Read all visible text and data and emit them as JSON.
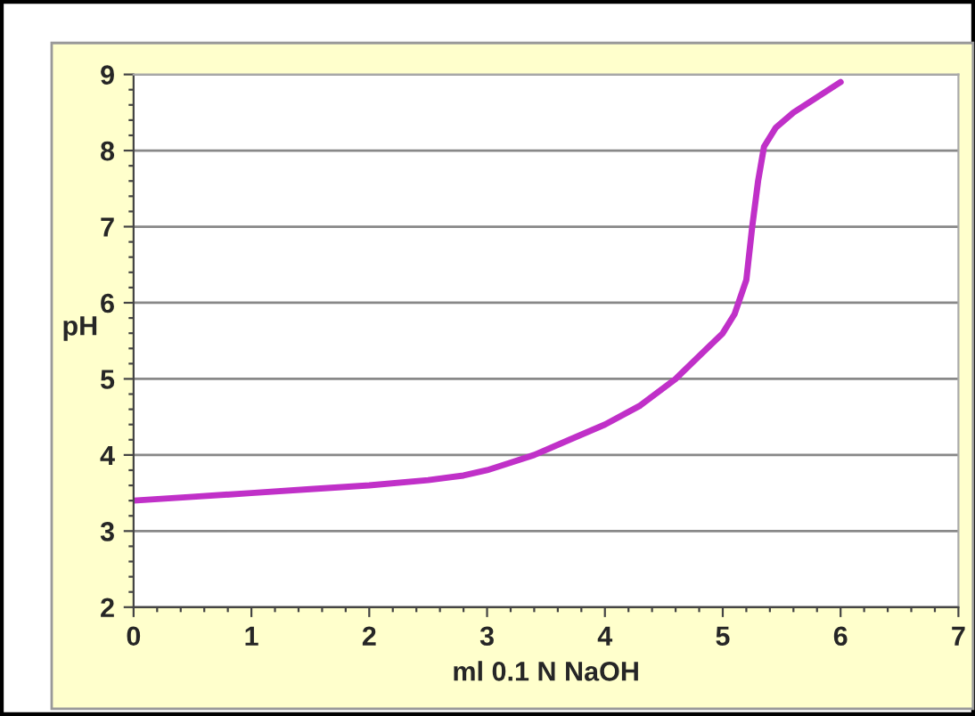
{
  "chart_data": {
    "type": "line",
    "xlabel": "ml 0.1 N NaOH",
    "ylabel": "pH",
    "x": [
      0,
      0.5,
      1,
      1.5,
      2,
      2.5,
      2.8,
      3,
      3.2,
      3.4,
      3.7,
      4,
      4.3,
      4.6,
      4.8,
      5.0,
      5.1,
      5.2,
      5.25,
      5.3,
      5.35,
      5.45,
      5.6,
      6.0
    ],
    "series": [
      {
        "color": "#c030c8",
        "values": [
          3.4,
          3.45,
          3.5,
          3.55,
          3.6,
          3.67,
          3.73,
          3.8,
          3.9,
          4.0,
          4.2,
          4.4,
          4.65,
          5.0,
          5.3,
          5.6,
          5.85,
          6.3,
          7.0,
          7.6,
          8.05,
          8.3,
          8.5,
          8.9
        ]
      }
    ],
    "xlim": [
      0,
      7
    ],
    "xticks": [
      0,
      1,
      2,
      3,
      4,
      5,
      6,
      7
    ],
    "ylim": [
      2,
      9
    ],
    "yticks": [
      2,
      3,
      4,
      5,
      6,
      7,
      8,
      9
    ],
    "grid": "y",
    "marker": "none",
    "line_style": "solid"
  }
}
